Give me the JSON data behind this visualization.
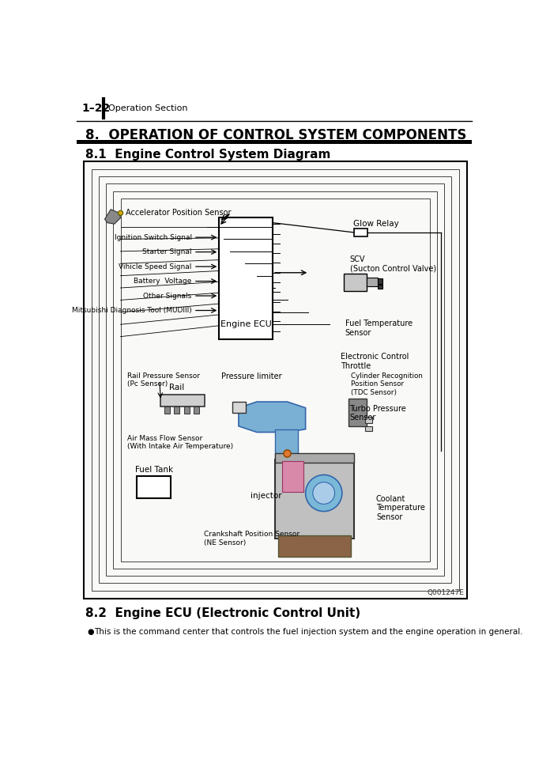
{
  "page_num": "1–22",
  "header_section": "Operation Section",
  "section_title": "8.  OPERATION OF CONTROL SYSTEM COMPONENTS",
  "subsection_title": "8.1  Engine Control System Diagram",
  "subsection2_title": "8.2  Engine ECU (Electronic Control Unit)",
  "bullet_text": "This is the command center that controls the fuel injection system and the engine operation in general.",
  "diagram_label": "Q001247E",
  "bg_color": "#ffffff",
  "left_labels": [
    "Ignition Switch Signal",
    "Starter Signal",
    "Vihicle Speed Signal",
    "Battery  Voltage",
    "Other Signals",
    "Mitsubishi Diagnosis Tool (MUDIII)"
  ],
  "ecu_label": "Engine ECU",
  "accel_label": "Accelerator Position Sensor",
  "glow_relay": "Glow Relay",
  "scv_label": "SCV\n(Sucton Control Valve)",
  "fuel_temp": "Fuel Temperature\nSensor",
  "ec_throttle": "Electronic Control\nThrottle",
  "tdc_sensor": "Cylinder Recognition\nPosition Sensor\n(TDC Sensor)",
  "turbo_sensor": "Turbo Pressure\nSensor",
  "coolant_sensor": "Coolant\nTemperature\nSensor",
  "rail_pressure": "Rail Pressure Sensor\n(Pc Sensor)",
  "rail_label": "Rail",
  "pressure_lim": "Pressure limiter",
  "air_mass": "Air Mass Flow Sensor\n(With Intake Air Temperature)",
  "fuel_tank": "Fuel Tank",
  "injector": "injector",
  "crankshaft": "Crankshaft Position Sensor\n(NE Sensor)"
}
